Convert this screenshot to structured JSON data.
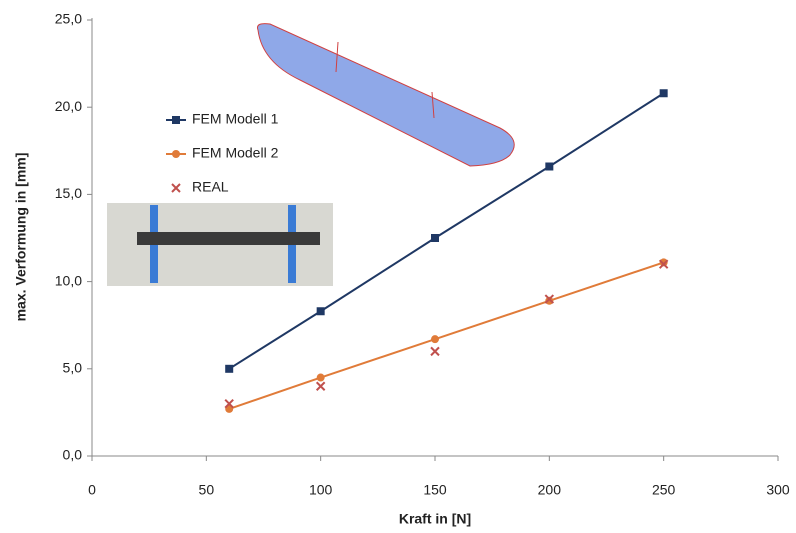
{
  "chart_data": {
    "type": "line",
    "xlabel": "Kraft in [N]",
    "ylabel": "max. Verformung in [mm]",
    "xlim": [
      0,
      300
    ],
    "xticks": [
      0,
      50,
      100,
      150,
      200,
      250,
      300
    ],
    "ylim": [
      0,
      25
    ],
    "yticks": [
      {
        "value": 0,
        "label": "0,0"
      },
      {
        "value": 5,
        "label": "5,0"
      },
      {
        "value": 10,
        "label": "10,0"
      },
      {
        "value": 15,
        "label": "15,0"
      },
      {
        "value": 20,
        "label": "20,0"
      },
      {
        "value": 25,
        "label": "25,0"
      }
    ],
    "grid": false,
    "series": [
      {
        "name": "FEM Modell 1",
        "color": "#1f3864",
        "marker": "square",
        "line": true,
        "x": [
          60,
          100,
          150,
          200,
          250
        ],
        "values": [
          5.0,
          8.3,
          12.5,
          16.6,
          20.8
        ]
      },
      {
        "name": "FEM Modell 2",
        "color": "#e07b39",
        "marker": "circle",
        "line": true,
        "x": [
          60,
          100,
          150,
          200,
          250
        ],
        "values": [
          2.7,
          4.5,
          6.7,
          8.9,
          11.1
        ]
      },
      {
        "name": "REAL",
        "color": "#c0504d",
        "marker": "x",
        "line": false,
        "x": [
          60,
          100,
          150,
          200,
          250
        ],
        "values": [
          3.0,
          4.0,
          6.0,
          9.0,
          11.0
        ]
      }
    ]
  }
}
